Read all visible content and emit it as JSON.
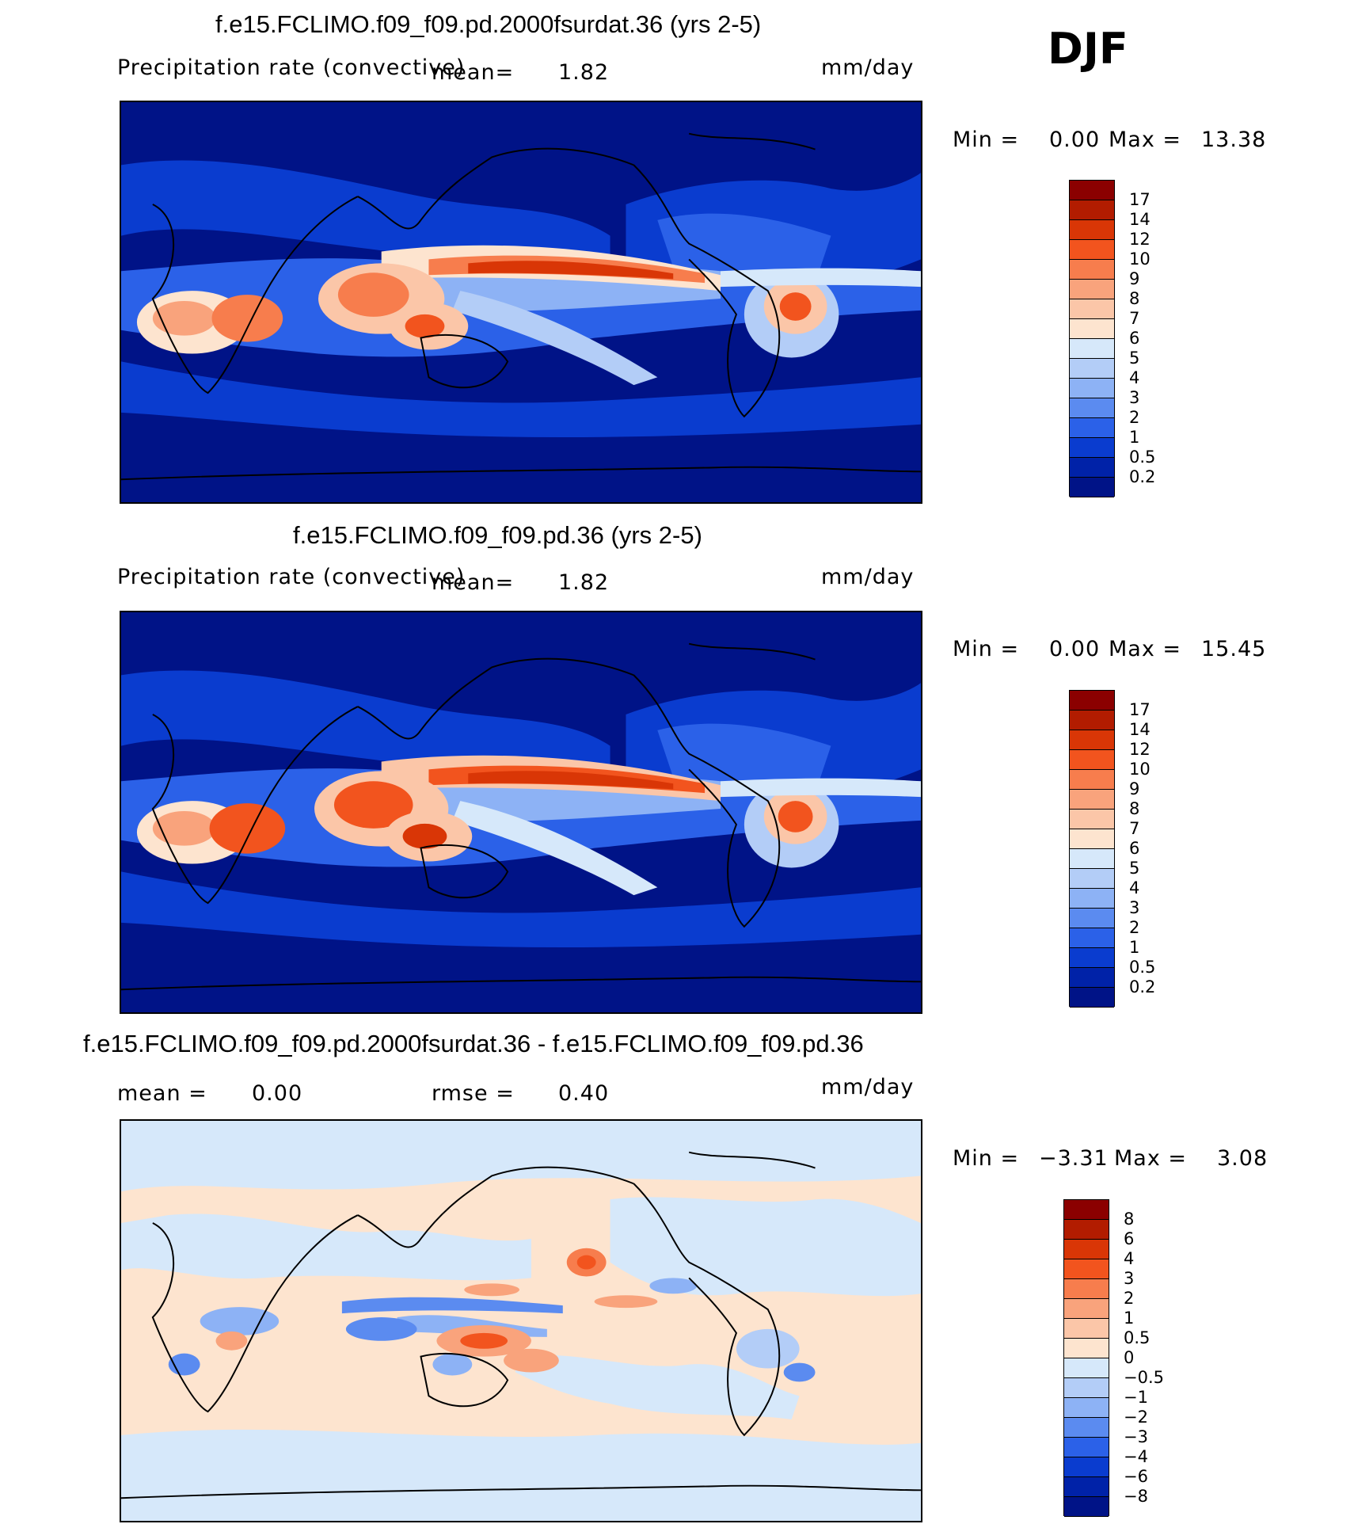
{
  "season": "DJF",
  "panels": [
    {
      "id": "p1",
      "title": "f.e15.FCLIMO.f09_f09.pd.2000fsurdat.36 (yrs 2-5)",
      "variable": "Precipitation rate (convective)",
      "mean_label": "mean=",
      "mean_value": "1.82",
      "units": "mm/day",
      "min_label": "Min =",
      "min_value": "0.00",
      "max_label": "Max =",
      "max_value": "13.38",
      "colorbar": {
        "ticks": [
          "17",
          "14",
          "12",
          "10",
          "9",
          "8",
          "7",
          "6",
          "5",
          "4",
          "3",
          "2",
          "1",
          "0.5",
          "0.2"
        ],
        "colors": [
          "#8b0000",
          "#b21c00",
          "#d93606",
          "#f2541e",
          "#f77d4d",
          "#f9a37c",
          "#fbc6a8",
          "#fde4cf",
          "#d6e8fa",
          "#b3cdf7",
          "#8db2f5",
          "#5b8bf0",
          "#2b61e8",
          "#0a3ccf",
          "#0022a8",
          "#001387"
        ]
      }
    },
    {
      "id": "p2",
      "title": "f.e15.FCLIMO.f09_f09.pd.36 (yrs 2-5)",
      "variable": "Precipitation rate (convective)",
      "mean_label": "mean=",
      "mean_value": "1.82",
      "units": "mm/day",
      "min_label": "Min =",
      "min_value": "0.00",
      "max_label": "Max =",
      "max_value": "15.45",
      "colorbar": {
        "ticks": [
          "17",
          "14",
          "12",
          "10",
          "9",
          "8",
          "7",
          "6",
          "5",
          "4",
          "3",
          "2",
          "1",
          "0.5",
          "0.2"
        ],
        "colors": [
          "#8b0000",
          "#b21c00",
          "#d93606",
          "#f2541e",
          "#f77d4d",
          "#f9a37c",
          "#fbc6a8",
          "#fde4cf",
          "#d6e8fa",
          "#b3cdf7",
          "#8db2f5",
          "#5b8bf0",
          "#2b61e8",
          "#0a3ccf",
          "#0022a8",
          "#001387"
        ]
      }
    },
    {
      "id": "p3",
      "title": "f.e15.FCLIMO.f09_f09.pd.2000fsurdat.36 - f.e15.FCLIMO.f09_f09.pd.36",
      "mean_label": "mean =",
      "mean_value": "0.00",
      "rmse_label": "rmse =",
      "rmse_value": "0.40",
      "units": "mm/day",
      "min_label": "Min =",
      "min_value": "−3.31",
      "max_label": "Max =",
      "max_value": "3.08",
      "colorbar": {
        "ticks": [
          "8",
          "6",
          "4",
          "3",
          "2",
          "1",
          "0.5",
          "0",
          "−0.5",
          "−1",
          "−2",
          "−3",
          "−4",
          "−6",
          "−8"
        ],
        "colors": [
          "#8b0000",
          "#b21c00",
          "#d93606",
          "#f2541e",
          "#f77d4d",
          "#f9a37c",
          "#fbc6a8",
          "#fde4cf",
          "#d6e8fa",
          "#b3cdf7",
          "#8db2f5",
          "#5b8bf0",
          "#2b61e8",
          "#0a3ccf",
          "#0022a8",
          "#001387"
        ]
      }
    }
  ]
}
